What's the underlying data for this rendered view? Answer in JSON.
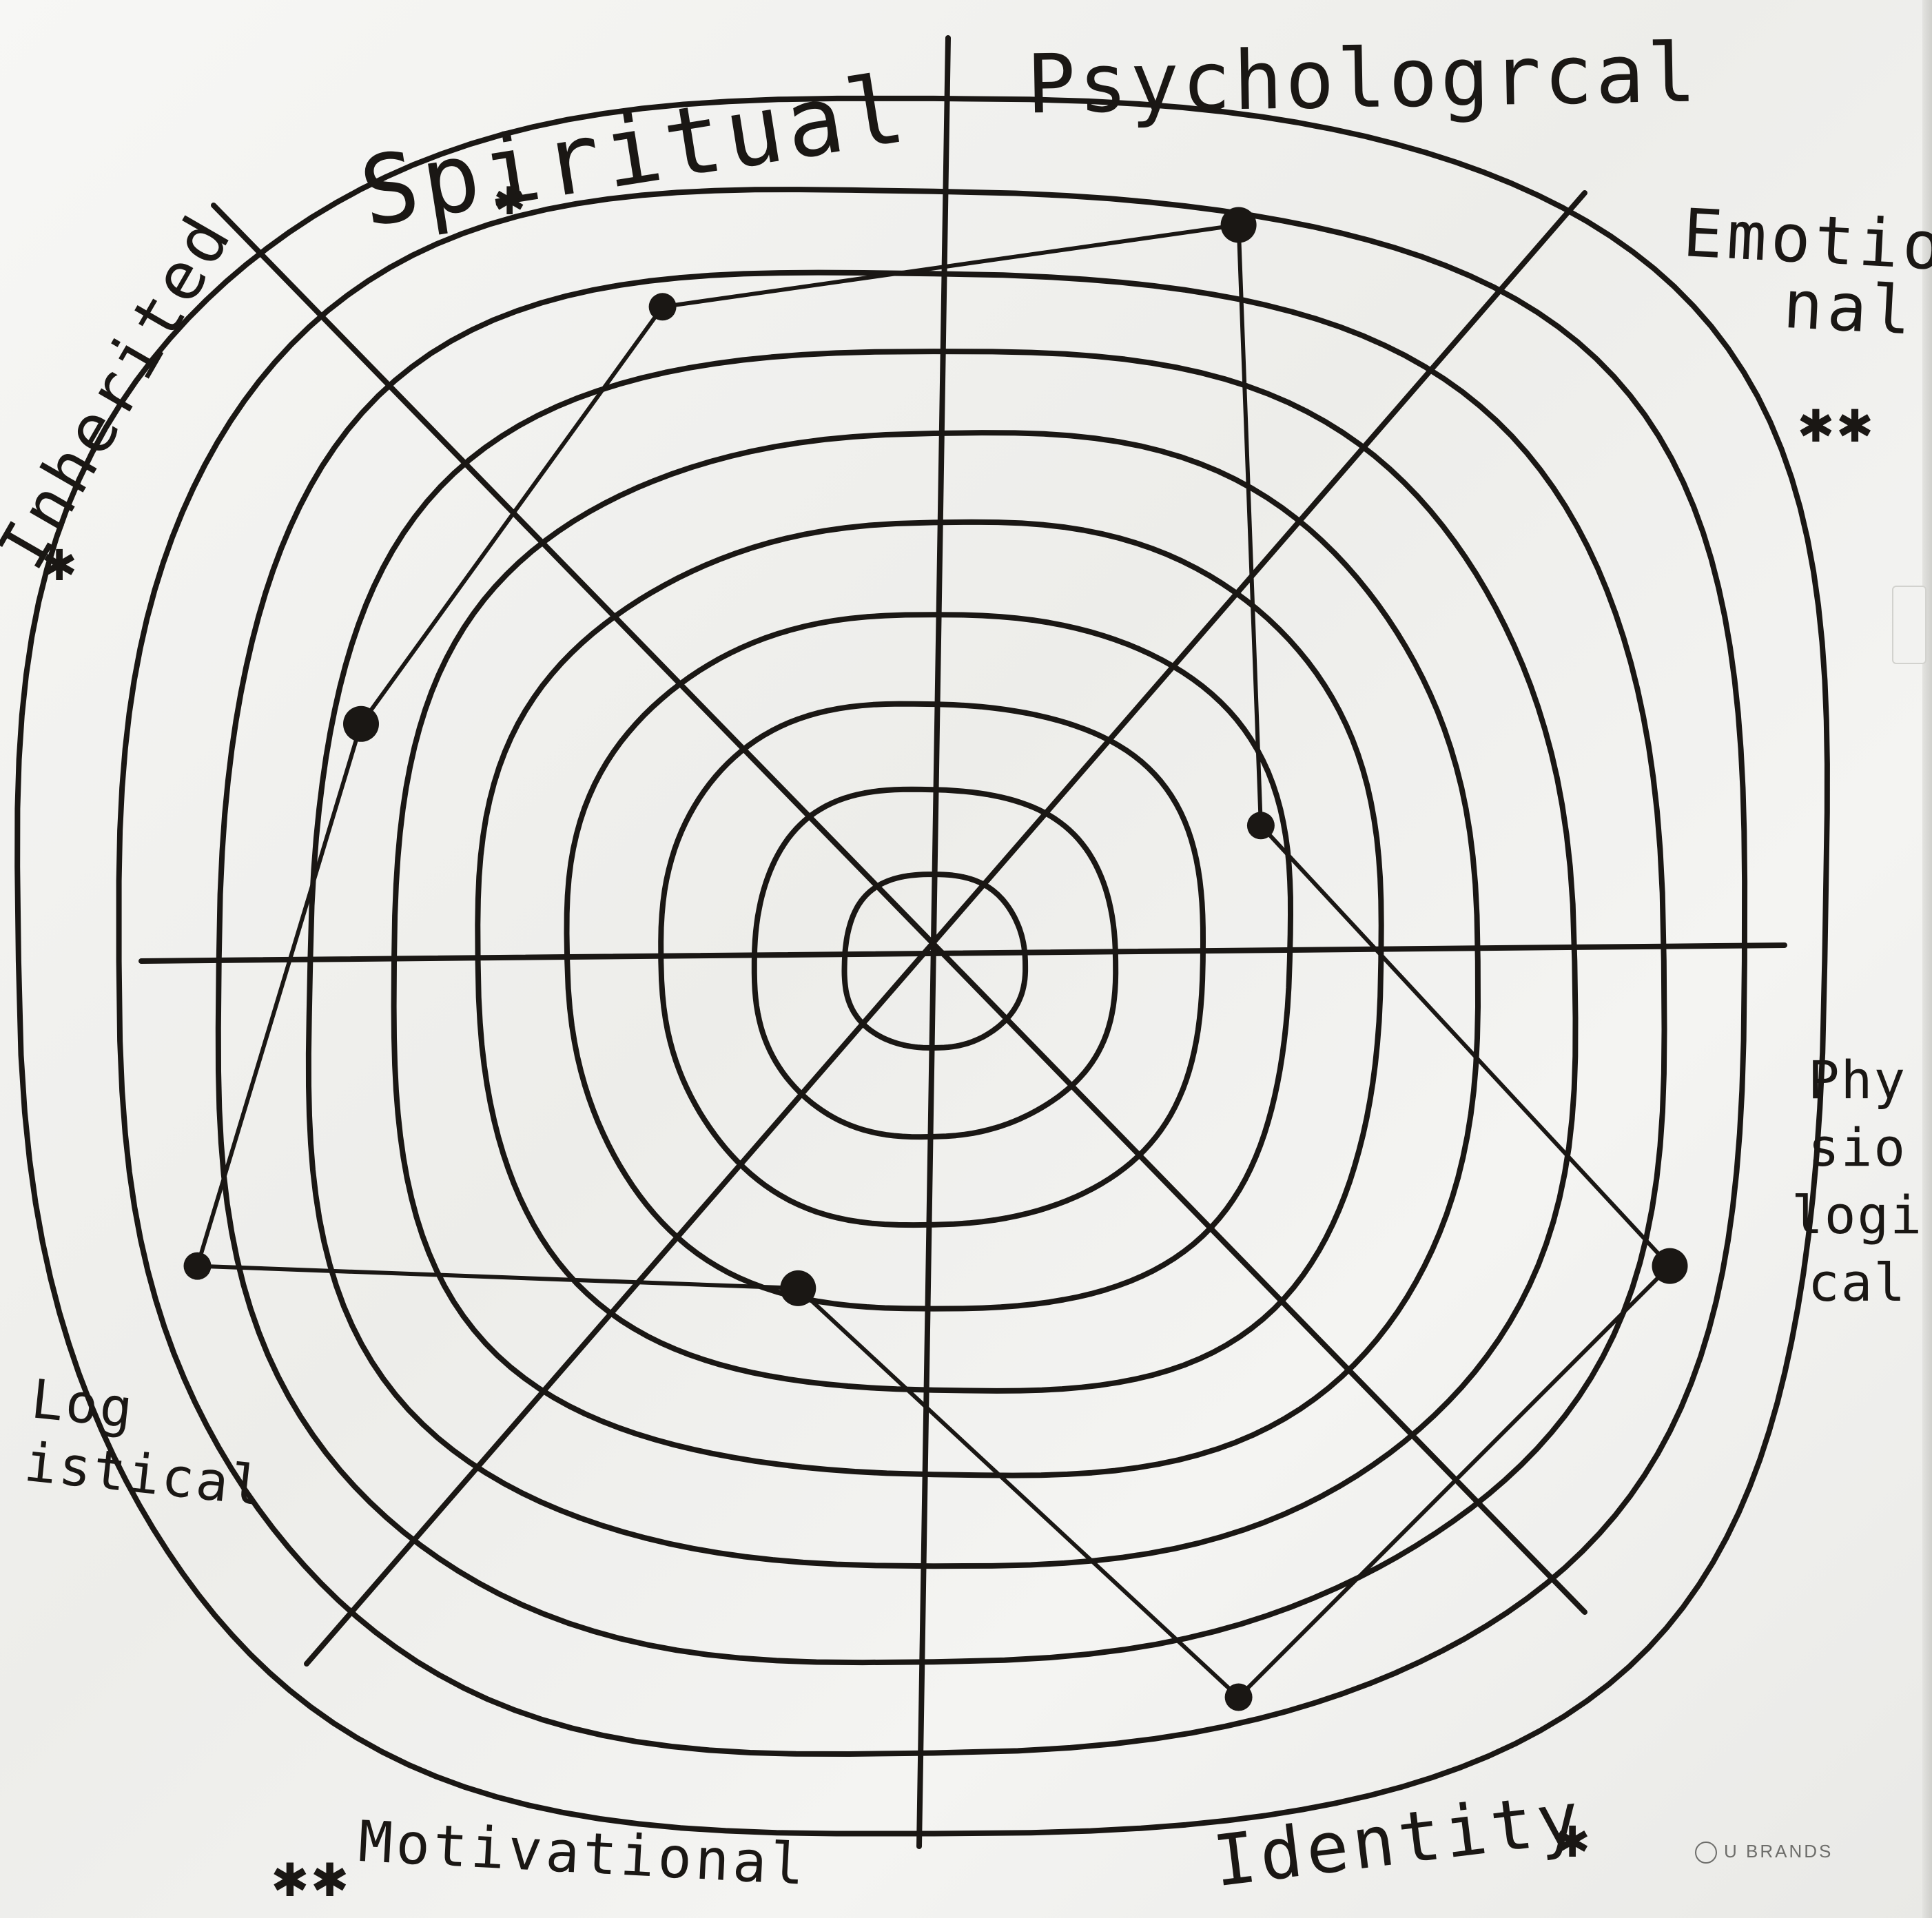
{
  "labels": {
    "spiritual": "Spiritual",
    "psychological": "Psychologrcal",
    "emotional": [
      "Emotio",
      "nal"
    ],
    "inherited": "Inherited",
    "physiological": [
      "Phy",
      "sio",
      "logi",
      "cal"
    ],
    "logistical": [
      "Log",
      "istical"
    ],
    "motivational": "Motivational",
    "identity": "Identity"
  },
  "stars": {
    "spiritual": "✱",
    "emotional": "✱✱",
    "inherited": "✱",
    "motivational": "✱✱",
    "identity": "✱"
  },
  "brand": {
    "text": "U BRANDS",
    "logo_icon": "ubrands-logo-icon"
  },
  "chart_data": {
    "type": "radar",
    "rings": 10,
    "axis_order_clockwise_from_top": [
      "Psychological",
      "Emotional",
      "Physiological",
      "Identity",
      "Motivational",
      "Logistical",
      "Inherited",
      "Spiritual"
    ],
    "points_clockwise_from_top_right": [
      {
        "ring": 9
      },
      {
        "ring": 4
      },
      {
        "ring": 9
      },
      {
        "ring": 9
      },
      {
        "ring": 4
      },
      {
        "ring": 9
      },
      {
        "ring": 7
      },
      {
        "ring": 8
      }
    ],
    "ink_color": "#1a1714"
  }
}
